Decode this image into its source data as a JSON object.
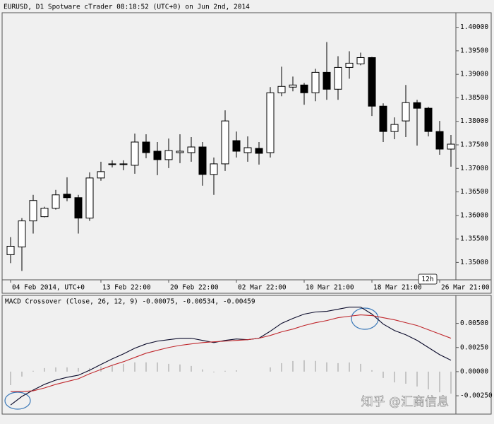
{
  "chart_data": [
    {
      "type": "candlestick",
      "title": "EURUSD, D1 Spotware cTrader 08:18:52 (UTC+0) on Jun 2nd, 2014",
      "categories": [
        "04 Feb 2014, UTC+0",
        null,
        null,
        null,
        null,
        null,
        null,
        null,
        "13 Feb 22:00",
        null,
        null,
        null,
        null,
        null,
        "20 Feb 22:00",
        null,
        null,
        null,
        null,
        null,
        "02 Mar 22:00",
        null,
        null,
        null,
        null,
        null,
        "10 Mar 21:00",
        null,
        null,
        null,
        null,
        null,
        "18 Mar 21:00",
        null,
        null,
        null,
        null,
        null,
        "26 Mar 21:00",
        null
      ],
      "open": [
        1.35165,
        1.3533,
        1.35883,
        1.35973,
        1.36153,
        1.36452,
        1.36377,
        1.35943,
        1.36796,
        1.37081,
        1.37096,
        1.37066,
        1.3756,
        1.37365,
        1.37186,
        1.37335,
        1.37335,
        1.37455,
        1.36871,
        1.37096,
        1.3759,
        1.37335,
        1.37425,
        1.37335,
        1.38608,
        1.38728,
        1.38773,
        1.38608,
        1.39042,
        1.38683,
        1.39147,
        1.39222,
        1.39356,
        1.38323,
        1.37784,
        1.38009,
        1.38398,
        1.38279,
        1.37784,
        1.3741
      ],
      "high": [
        1.35539,
        1.35943,
        1.36437,
        1.36183,
        1.36542,
        1.36811,
        1.36437,
        1.36916,
        1.37141,
        1.37171,
        1.37171,
        1.3774,
        1.37725,
        1.3756,
        1.37635,
        1.37725,
        1.37665,
        1.3756,
        1.37231,
        1.38234,
        1.37784,
        1.3768,
        1.3756,
        1.38728,
        1.39162,
        1.38952,
        1.38817,
        1.39117,
        1.39686,
        1.39386,
        1.39491,
        1.39461,
        1.39371,
        1.38383,
        1.38084,
        1.38773,
        1.38458,
        1.38308,
        1.38009,
        1.3771
      ],
      "low": [
        1.34985,
        1.3482,
        1.35614,
        1.35958,
        1.36123,
        1.36302,
        1.35614,
        1.35883,
        1.36737,
        1.37021,
        1.36961,
        1.36886,
        1.37216,
        1.36856,
        1.37006,
        1.37111,
        1.37141,
        1.36632,
        1.36437,
        1.36946,
        1.37231,
        1.37141,
        1.37081,
        1.37231,
        1.38533,
        1.38638,
        1.38353,
        1.38428,
        1.38458,
        1.38458,
        1.38907,
        1.39192,
        1.38114,
        1.3756,
        1.3762,
        1.37665,
        1.37485,
        1.3768,
        1.3729,
        1.37036
      ],
      "close": [
        1.35344,
        1.35883,
        1.36317,
        1.36153,
        1.36437,
        1.36377,
        1.35943,
        1.36796,
        1.36931,
        1.37096,
        1.37081,
        1.3756,
        1.37335,
        1.37186,
        1.3738,
        1.37365,
        1.37455,
        1.36871,
        1.37096,
        1.38009,
        1.37365,
        1.3744,
        1.3732,
        1.38608,
        1.38743,
        1.38773,
        1.38608,
        1.39042,
        1.38683,
        1.39147,
        1.39237,
        1.39356,
        1.38323,
        1.37784,
        1.37934,
        1.38398,
        1.38279,
        1.37784,
        1.3741,
        1.37515
      ],
      "up_color": "#ffffff",
      "down_color": "#000000",
      "ylim": [
        1.3463,
        1.4031
      ],
      "yticks": [
        {
          "value": 1.35,
          "label": "1.35000"
        },
        {
          "value": 1.355,
          "label": "1.35500"
        },
        {
          "value": 1.36,
          "label": "1.36000"
        },
        {
          "value": 1.365,
          "label": "1.36500"
        },
        {
          "value": 1.37,
          "label": "1.37000"
        },
        {
          "value": 1.375,
          "label": "1.37500"
        },
        {
          "value": 1.38,
          "label": "1.38000"
        },
        {
          "value": 1.385,
          "label": "1.38500"
        },
        {
          "value": 1.39,
          "label": "1.39000"
        },
        {
          "value": 1.395,
          "label": "1.39500"
        },
        {
          "value": 1.4,
          "label": "1.40000"
        }
      ],
      "timeframe_label": "12h"
    },
    {
      "type": "line",
      "title": "MACD Crossover (Close, 26, 12, 9) -0.00075, -0.00534, -0.00459",
      "series": [
        {
          "color": "#0a0a2a",
          "values": [
            -0.00346,
            -0.00257,
            -0.00191,
            -0.00132,
            -0.00088,
            -0.00059,
            -0.00037,
            0.00015,
            0.00074,
            0.00132,
            0.00184,
            0.00243,
            0.00287,
            0.00316,
            0.00331,
            0.00346,
            0.00346,
            0.00324,
            0.00301,
            0.00324,
            0.00338,
            0.00331,
            0.00346,
            0.00419,
            0.005,
            0.00551,
            0.00596,
            0.00618,
            0.00625,
            0.00647,
            0.00669,
            0.00669,
            0.00596,
            0.00493,
            0.00426,
            0.00382,
            0.00324,
            0.0025,
            0.00176,
            0.00118
          ]
        },
        {
          "color": "#c0282d",
          "values": [
            -0.00206,
            -0.00206,
            -0.00199,
            -0.00169,
            -0.00132,
            -0.00103,
            -0.00074,
            -0.00022,
            0.00022,
            0.00066,
            0.00103,
            0.00147,
            0.00191,
            0.00221,
            0.0025,
            0.00272,
            0.00287,
            0.00301,
            0.00309,
            0.00316,
            0.00324,
            0.00331,
            0.00346,
            0.00375,
            0.00412,
            0.00441,
            0.00478,
            0.00507,
            0.00529,
            0.00559,
            0.00574,
            0.00588,
            0.00581,
            0.00559,
            0.00537,
            0.00507,
            0.00478,
            0.00434,
            0.0039,
            0.00346
          ]
        }
      ],
      "histogram": {
        "color": "#9a9a9a",
        "values": [
          -0.0014,
          -0.00051,
          8e-05,
          0.00037,
          0.00044,
          0.00044,
          0.00037,
          0.00037,
          0.00052,
          0.00066,
          0.00081,
          0.00096,
          0.00096,
          0.00095,
          0.00081,
          0.00074,
          0.00059,
          0.00023,
          -8e-05,
          8e-05,
          0.00014,
          0.0,
          0.0,
          0.00044,
          0.00088,
          0.0011,
          0.00118,
          0.00111,
          0.00096,
          0.00088,
          0.00095,
          0.00081,
          0.00015,
          -0.00066,
          -0.00111,
          -0.00125,
          -0.00154,
          -0.00184,
          -0.00214,
          -0.00228
        ]
      },
      "ylim": [
        -0.0044,
        0.0079
      ],
      "yticks": [
        {
          "value": -0.0025,
          "label": "-0.00250"
        },
        {
          "value": 0,
          "label": "0.00000"
        },
        {
          "value": 0.0025,
          "label": "0.00250"
        },
        {
          "value": 0.005,
          "label": "0.00500"
        }
      ],
      "watermark": "知乎 @汇商信息"
    }
  ]
}
